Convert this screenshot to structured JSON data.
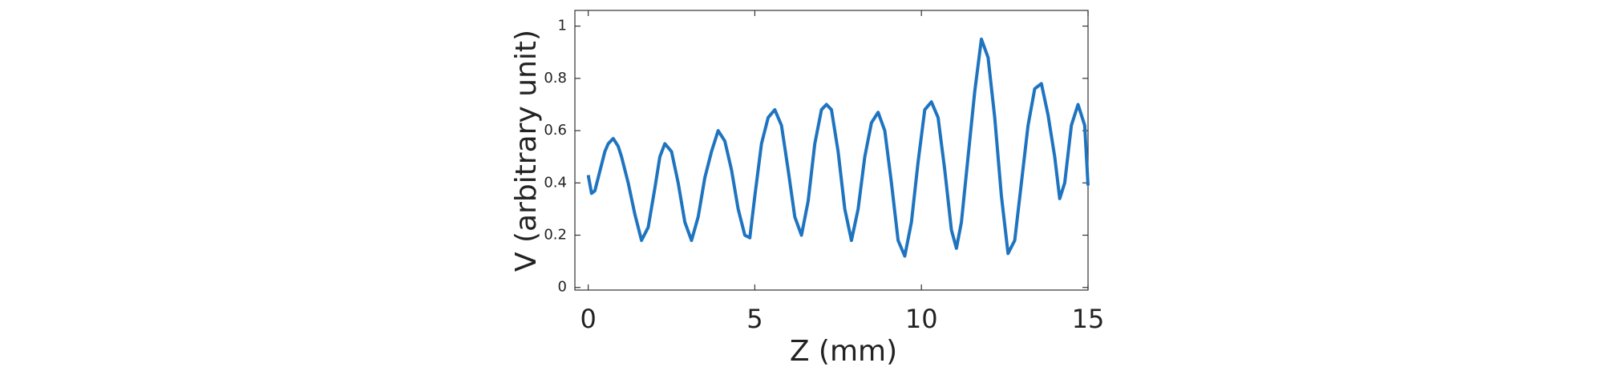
{
  "chart_data": {
    "type": "line",
    "xlabel": "Z (mm)",
    "ylabel": "V (arbitrary unit)",
    "x": [
      0,
      0.1,
      0.2,
      0.3,
      0.4,
      0.5,
      0.6,
      0.75,
      0.9,
      1.0,
      1.2,
      1.4,
      1.6,
      1.8,
      2.0,
      2.15,
      2.3,
      2.5,
      2.7,
      2.9,
      3.1,
      3.3,
      3.5,
      3.7,
      3.9,
      4.1,
      4.3,
      4.5,
      4.7,
      4.85,
      5.0,
      5.2,
      5.4,
      5.6,
      5.8,
      6.0,
      6.2,
      6.4,
      6.6,
      6.8,
      7.0,
      7.15,
      7.3,
      7.5,
      7.7,
      7.9,
      8.1,
      8.3,
      8.5,
      8.7,
      8.9,
      9.1,
      9.3,
      9.5,
      9.7,
      9.9,
      10.1,
      10.3,
      10.5,
      10.7,
      10.9,
      11.05,
      11.2,
      11.4,
      11.6,
      11.8,
      12.0,
      12.2,
      12.4,
      12.6,
      12.8,
      13.0,
      13.2,
      13.4,
      13.6,
      13.8,
      14.0,
      14.15,
      14.3,
      14.5,
      14.7,
      14.9,
      15.0
    ],
    "series": [
      {
        "color": "#1f74c0",
        "values": [
          0.43,
          0.36,
          0.37,
          0.42,
          0.47,
          0.52,
          0.55,
          0.57,
          0.54,
          0.5,
          0.4,
          0.28,
          0.18,
          0.23,
          0.38,
          0.5,
          0.55,
          0.52,
          0.4,
          0.25,
          0.18,
          0.27,
          0.42,
          0.52,
          0.6,
          0.56,
          0.45,
          0.3,
          0.2,
          0.19,
          0.35,
          0.55,
          0.65,
          0.68,
          0.62,
          0.45,
          0.27,
          0.2,
          0.33,
          0.55,
          0.68,
          0.7,
          0.68,
          0.52,
          0.3,
          0.18,
          0.3,
          0.5,
          0.63,
          0.67,
          0.6,
          0.4,
          0.18,
          0.12,
          0.25,
          0.48,
          0.68,
          0.71,
          0.65,
          0.45,
          0.22,
          0.15,
          0.25,
          0.5,
          0.75,
          0.95,
          0.88,
          0.65,
          0.35,
          0.13,
          0.18,
          0.4,
          0.62,
          0.76,
          0.78,
          0.66,
          0.5,
          0.34,
          0.4,
          0.62,
          0.7,
          0.62,
          0.39
        ]
      }
    ],
    "xlim": [
      -0.4,
      15
    ],
    "ylim": [
      -0.01,
      1.06
    ],
    "xticks": [
      0,
      5,
      10,
      15
    ],
    "yticks": [
      0,
      0.2,
      0.4,
      0.6,
      0.8,
      1
    ]
  }
}
